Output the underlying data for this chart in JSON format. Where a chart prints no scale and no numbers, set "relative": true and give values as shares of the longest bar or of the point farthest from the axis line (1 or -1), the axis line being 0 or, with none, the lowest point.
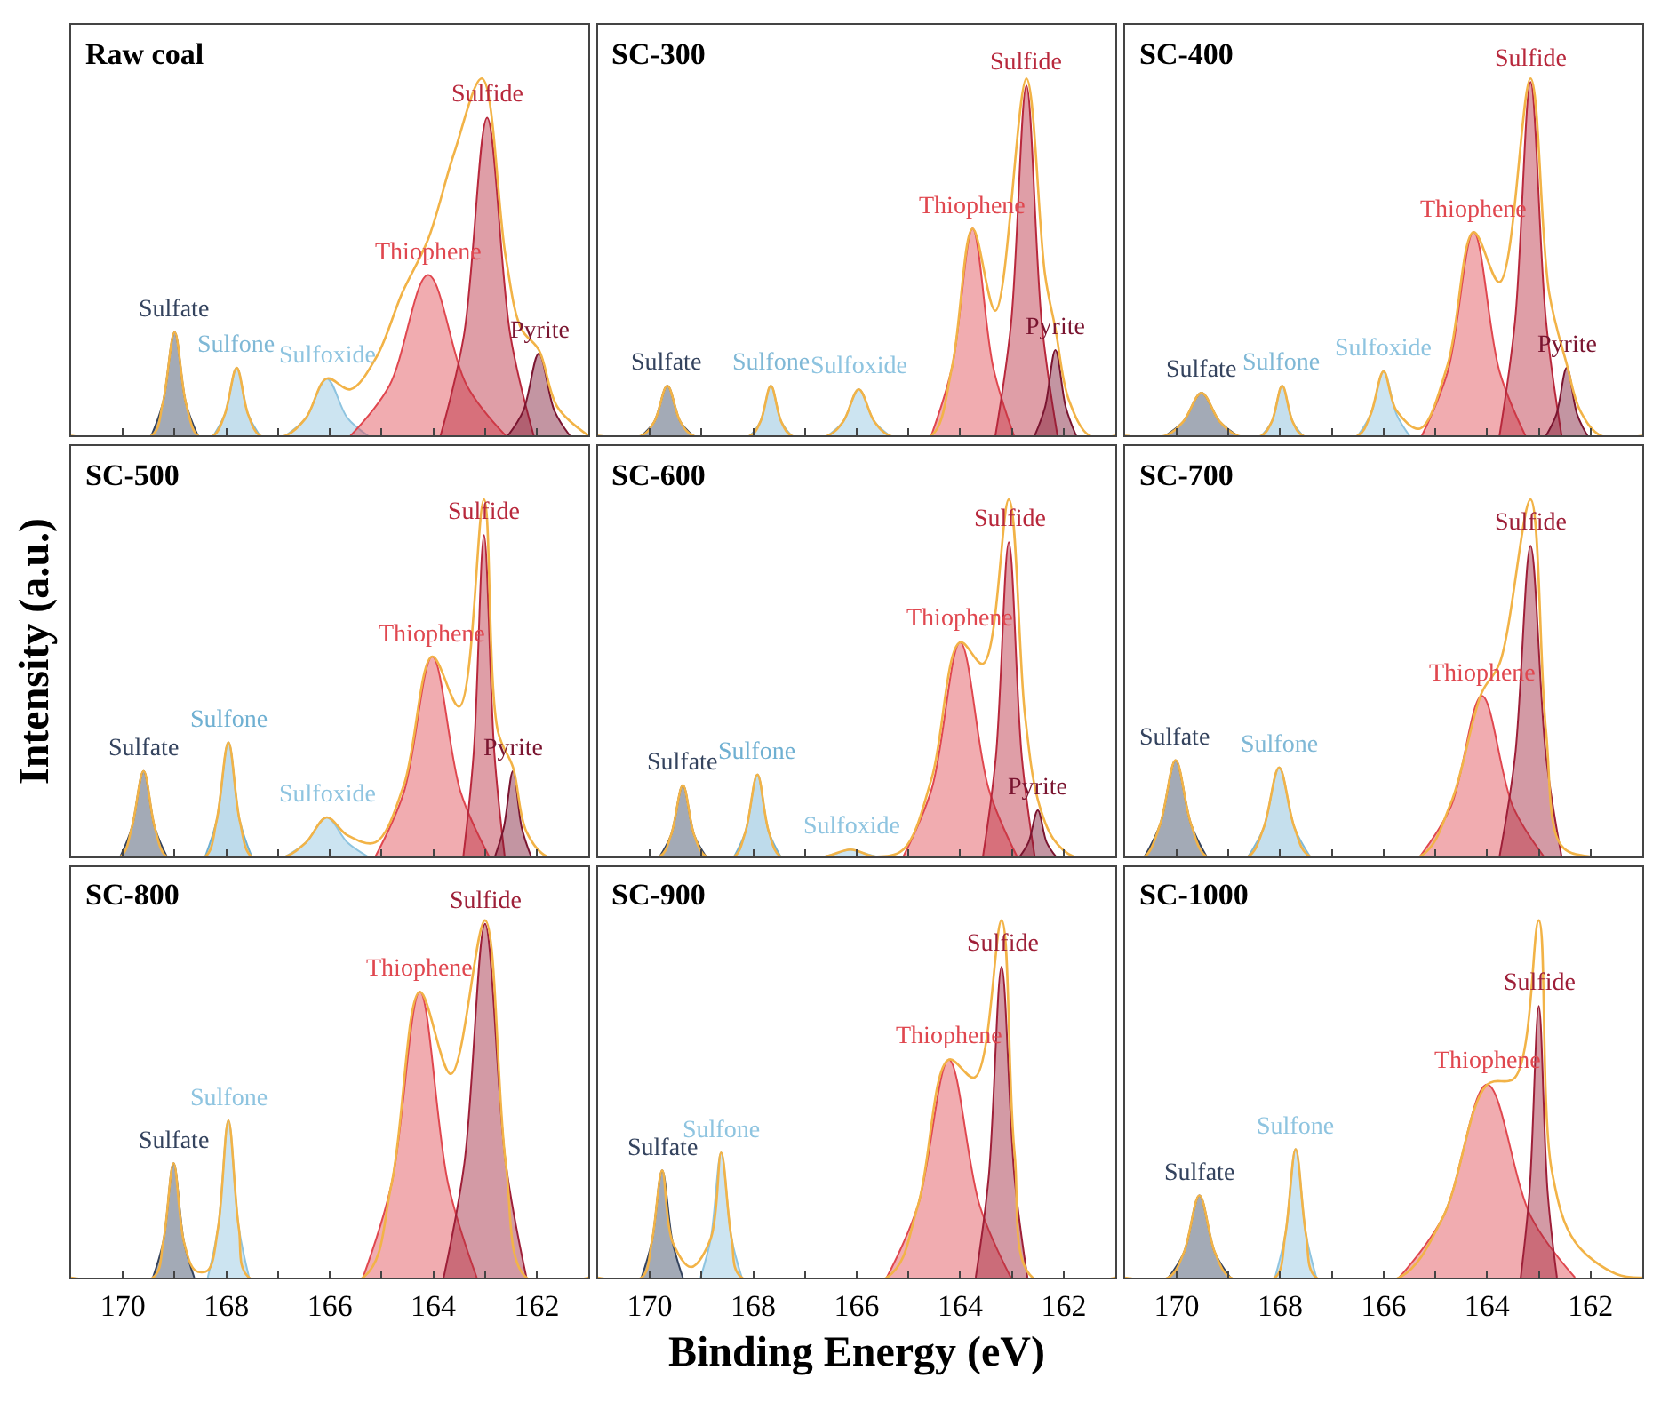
{
  "chart_data": [
    {
      "type": "area",
      "relative": true,
      "title": "Raw coal",
      "xlim": [
        171,
        161
      ],
      "xticks": [
        170,
        {
          "value": 169,
          "label": null
        },
        168,
        {
          "value": 167,
          "label": null
        },
        166,
        {
          "value": 165,
          "label": null
        },
        164,
        {
          "value": 163,
          "label": null
        },
        162
      ],
      "tick_labels": false,
      "series": [
        {
          "name": "Sulfate",
          "color": "#34435e",
          "x": [
            169.45,
            169.23,
            169.0,
            168.78,
            168.55
          ],
          "values": [
            0,
            0.09,
            0.29,
            0.09,
            0
          ]
        },
        {
          "name": "Sulfone",
          "color": "#7fb8d6",
          "x": [
            168.25,
            168.03,
            167.8,
            167.58,
            167.35
          ],
          "values": [
            0,
            0.06,
            0.19,
            0.06,
            0
          ]
        },
        {
          "name": "Sulfoxide",
          "color": "#8ec4e0",
          "x": [
            166.86,
            166.46,
            166.06,
            165.66,
            165.26
          ],
          "values": [
            0,
            0.05,
            0.16,
            0.05,
            0
          ]
        },
        {
          "name": "Thiophene",
          "color": "#e0474f",
          "x": [
            165.6,
            164.85,
            164.1,
            163.35,
            162.6
          ],
          "values": [
            0,
            0.14,
            0.45,
            0.14,
            0
          ]
        },
        {
          "name": "Sulfide",
          "color": "#b8283c",
          "x": [
            163.86,
            163.41,
            162.96,
            162.51,
            162.06
          ],
          "values": [
            0,
            0.28,
            0.89,
            0.28,
            0
          ]
        },
        {
          "name": "Pyrite",
          "color": "#7a1530",
          "x": [
            162.56,
            162.26,
            161.96,
            161.66,
            161.36
          ],
          "values": [
            0,
            0.07,
            0.23,
            0.07,
            0
          ]
        },
        {
          "type": "line",
          "color": "#f2b347",
          "x": [
            171,
            169.45,
            169.23,
            169.0,
            168.78,
            168.55,
            168.25,
            168.03,
            167.8,
            167.58,
            167.35,
            166.86,
            166.46,
            166.06,
            165.6,
            165.1,
            164.6,
            164.1,
            163.6,
            163.06,
            162.6,
            162.3,
            161.96,
            161.6,
            161.0
          ],
          "values": [
            0,
            0,
            0.09,
            0.29,
            0.09,
            0,
            0,
            0.06,
            0.19,
            0.06,
            0,
            0,
            0.05,
            0.16,
            0.13,
            0.22,
            0.4,
            0.55,
            0.79,
            1.0,
            0.5,
            0.3,
            0.24,
            0.08,
            0
          ]
        }
      ]
    },
    {
      "type": "area",
      "relative": true,
      "title": "SC-300",
      "xlim": [
        171,
        161
      ],
      "xticks": [
        170,
        {
          "value": 169,
          "label": null
        },
        168,
        {
          "value": 167,
          "label": null
        },
        166,
        {
          "value": 165,
          "label": null
        },
        164,
        {
          "value": 163,
          "label": null
        },
        162
      ],
      "tick_labels": false,
      "series": [
        {
          "name": "Sulfate",
          "color": "#34435e",
          "x": [
            170.16,
            169.91,
            169.66,
            169.41,
            169.16
          ],
          "values": [
            0,
            0.04,
            0.14,
            0.04,
            0
          ]
        },
        {
          "name": "Sulfone",
          "color": "#7fb8d6",
          "x": [
            168.06,
            167.86,
            167.66,
            167.46,
            167.26
          ],
          "values": [
            0,
            0.04,
            0.14,
            0.04,
            0
          ]
        },
        {
          "name": "Sulfoxide",
          "color": "#8ec4e0",
          "x": [
            166.56,
            166.26,
            165.96,
            165.66,
            165.36
          ],
          "values": [
            0,
            0.04,
            0.13,
            0.04,
            0
          ]
        },
        {
          "name": "Thiophene",
          "color": "#e0474f",
          "x": [
            164.56,
            164.16,
            163.76,
            163.36,
            162.96
          ],
          "values": [
            0,
            0.19,
            0.58,
            0.19,
            0
          ]
        },
        {
          "name": "Sulfide",
          "color": "#b8283c",
          "x": [
            163.32,
            163.02,
            162.72,
            162.42,
            162.12
          ],
          "values": [
            0,
            0.31,
            0.98,
            0.31,
            0
          ]
        },
        {
          "name": "Pyrite",
          "color": "#7a1530",
          "x": [
            162.56,
            162.36,
            162.16,
            161.96,
            161.76
          ],
          "values": [
            0,
            0.08,
            0.24,
            0.08,
            0
          ]
        },
        {
          "type": "line",
          "color": "#f2b347",
          "x": [
            171,
            170.16,
            169.91,
            169.66,
            169.41,
            169.16,
            168.06,
            167.86,
            167.66,
            167.46,
            167.26,
            166.56,
            166.26,
            165.96,
            165.66,
            165.36,
            164.56,
            164.16,
            163.76,
            163.32,
            162.72,
            162.36,
            162.16,
            161.9,
            161.5,
            161.0
          ],
          "values": [
            0,
            0,
            0.04,
            0.14,
            0.04,
            0,
            0,
            0.04,
            0.14,
            0.04,
            0,
            0,
            0.04,
            0.13,
            0.04,
            0,
            0,
            0.19,
            0.58,
            0.35,
            1.0,
            0.45,
            0.3,
            0.1,
            0,
            0
          ]
        }
      ]
    },
    {
      "type": "area",
      "relative": true,
      "title": "SC-400",
      "xlim": [
        171,
        161
      ],
      "xticks": [
        170,
        {
          "value": 169,
          "label": null
        },
        168,
        {
          "value": 167,
          "label": null
        },
        166,
        {
          "value": 165,
          "label": null
        },
        164,
        {
          "value": 163,
          "label": null
        },
        162
      ],
      "tick_labels": false,
      "series": [
        {
          "name": "Sulfate",
          "color": "#34435e",
          "x": [
            170.22,
            169.87,
            169.52,
            169.17,
            168.82
          ],
          "values": [
            0,
            0.04,
            0.12,
            0.04,
            0
          ]
        },
        {
          "name": "Sulfone",
          "color": "#7fb8d6",
          "x": [
            168.36,
            168.16,
            167.96,
            167.76,
            167.56
          ],
          "values": [
            0,
            0.04,
            0.14,
            0.04,
            0
          ]
        },
        {
          "name": "Sulfoxide",
          "color": "#8ec4e0",
          "x": [
            166.5,
            166.25,
            166.0,
            165.75,
            165.5
          ],
          "values": [
            0,
            0.06,
            0.18,
            0.06,
            0
          ]
        },
        {
          "name": "Thiophene",
          "color": "#e0474f",
          "x": [
            165.26,
            164.76,
            164.26,
            163.76,
            163.26
          ],
          "values": [
            0,
            0.18,
            0.57,
            0.18,
            0
          ]
        },
        {
          "name": "Sulfide",
          "color": "#b8283c",
          "x": [
            163.76,
            163.46,
            163.16,
            162.86,
            162.56
          ],
          "values": [
            0,
            0.32,
            0.99,
            0.32,
            0
          ]
        },
        {
          "name": "Pyrite",
          "color": "#7a1530",
          "x": [
            162.86,
            162.66,
            162.46,
            162.26,
            162.06
          ],
          "values": [
            0,
            0.06,
            0.19,
            0.06,
            0
          ]
        },
        {
          "type": "line",
          "color": "#f2b347",
          "x": [
            171,
            170.22,
            169.87,
            169.52,
            169.17,
            168.82,
            168.36,
            168.16,
            167.96,
            167.76,
            167.56,
            166.5,
            166.25,
            166.0,
            165.75,
            165.3,
            164.76,
            164.26,
            163.76,
            163.16,
            162.8,
            162.46,
            162.2,
            161.8,
            161.0
          ],
          "values": [
            0,
            0,
            0.04,
            0.12,
            0.04,
            0,
            0,
            0.04,
            0.14,
            0.04,
            0,
            0,
            0.06,
            0.18,
            0.07,
            0.02,
            0.2,
            0.57,
            0.43,
            1.0,
            0.4,
            0.2,
            0.07,
            0,
            0
          ]
        }
      ]
    },
    {
      "type": "area",
      "relative": true,
      "title": "SC-500",
      "ylabel": "Intensity (a.u.)",
      "xlim": [
        171,
        161
      ],
      "xticks": [
        170,
        {
          "value": 169,
          "label": null
        },
        168,
        {
          "value": 167,
          "label": null
        },
        166,
        {
          "value": 165,
          "label": null
        },
        164,
        {
          "value": 163,
          "label": null
        },
        162
      ],
      "tick_labels": false,
      "series": [
        {
          "name": "Sulfate",
          "color": "#34435e",
          "x": [
            170.05,
            169.83,
            169.6,
            169.38,
            169.15
          ],
          "values": [
            0,
            0.08,
            0.24,
            0.08,
            0
          ]
        },
        {
          "name": "Sulfone",
          "color": "#6fb0d2",
          "x": [
            168.41,
            168.19,
            167.96,
            167.74,
            167.51
          ],
          "values": [
            0,
            0.1,
            0.32,
            0.1,
            0
          ]
        },
        {
          "name": "Sulfoxide",
          "color": "#8ec4e0",
          "x": [
            166.86,
            166.46,
            166.06,
            165.66,
            165.26
          ],
          "values": [
            0,
            0.04,
            0.11,
            0.04,
            0
          ]
        },
        {
          "name": "Thiophene",
          "color": "#e0474f",
          "x": [
            165.12,
            164.57,
            164.02,
            163.47,
            162.92
          ],
          "values": [
            0,
            0.18,
            0.56,
            0.18,
            0
          ]
        },
        {
          "name": "Sulfide",
          "color": "#b8283c",
          "x": [
            163.42,
            163.22,
            163.02,
            162.82,
            162.62
          ],
          "values": [
            0,
            0.29,
            0.9,
            0.29,
            0
          ]
        },
        {
          "name": "Pyrite",
          "color": "#7a1530",
          "x": [
            162.81,
            162.64,
            162.46,
            162.29,
            162.11
          ],
          "values": [
            0,
            0.08,
            0.24,
            0.08,
            0
          ]
        },
        {
          "type": "line",
          "color": "#f2b347",
          "x": [
            171,
            170.05,
            169.83,
            169.6,
            169.38,
            169.15,
            168.41,
            168.19,
            167.96,
            167.74,
            167.51,
            166.86,
            166.46,
            166.06,
            165.66,
            165.12,
            164.57,
            164.02,
            163.5,
            163.02,
            162.75,
            162.46,
            162.2,
            161.8,
            161.0
          ],
          "values": [
            0,
            0,
            0.08,
            0.24,
            0.08,
            0,
            0,
            0.1,
            0.32,
            0.1,
            0,
            0,
            0.04,
            0.11,
            0.06,
            0.04,
            0.2,
            0.56,
            0.42,
            1.0,
            0.35,
            0.25,
            0.07,
            0,
            0
          ]
        }
      ]
    },
    {
      "type": "area",
      "relative": true,
      "title": "SC-600",
      "xlim": [
        171,
        161
      ],
      "xticks": [
        170,
        {
          "value": 169,
          "label": null
        },
        168,
        {
          "value": 167,
          "label": null
        },
        166,
        {
          "value": 165,
          "label": null
        },
        164,
        {
          "value": 163,
          "label": null
        },
        162
      ],
      "tick_labels": false,
      "series": [
        {
          "name": "Sulfate",
          "color": "#34435e",
          "x": [
            169.81,
            169.59,
            169.36,
            169.14,
            168.91
          ],
          "values": [
            0,
            0.06,
            0.2,
            0.06,
            0
          ]
        },
        {
          "name": "Sulfone",
          "color": "#6fb0d2",
          "x": [
            168.37,
            168.15,
            167.92,
            167.7,
            167.47
          ],
          "values": [
            0,
            0.07,
            0.23,
            0.07,
            0
          ]
        },
        {
          "name": "Sulfoxide",
          "color": "#8ec4e0",
          "x": [
            166.62,
            166.37,
            166.12,
            165.87,
            165.62
          ],
          "values": [
            0,
            0.01,
            0.02,
            0.01,
            0
          ]
        },
        {
          "name": "Thiophene",
          "color": "#e0474f",
          "x": [
            165.1,
            164.55,
            164.0,
            163.45,
            162.9
          ],
          "values": [
            0,
            0.19,
            0.6,
            0.19,
            0
          ]
        },
        {
          "name": "Sulfide",
          "color": "#b8283c",
          "x": [
            163.56,
            163.31,
            163.06,
            162.81,
            162.56
          ],
          "values": [
            0,
            0.28,
            0.88,
            0.28,
            0
          ]
        },
        {
          "name": "Pyrite",
          "color": "#7a1530",
          "x": [
            162.85,
            162.68,
            162.5,
            162.33,
            162.15
          ],
          "values": [
            0,
            0.04,
            0.13,
            0.04,
            0
          ]
        },
        {
          "type": "line",
          "color": "#f2b347",
          "x": [
            171,
            169.81,
            169.59,
            169.36,
            169.14,
            168.91,
            168.37,
            168.15,
            167.92,
            167.7,
            167.47,
            166.62,
            166.12,
            165.62,
            165.1,
            164.55,
            164.0,
            163.56,
            163.06,
            162.75,
            162.5,
            162.2,
            161.8,
            161.0
          ],
          "values": [
            0,
            0,
            0.06,
            0.2,
            0.06,
            0,
            0,
            0.07,
            0.23,
            0.07,
            0,
            0,
            0.02,
            0,
            0.02,
            0.22,
            0.6,
            0.54,
            1.0,
            0.4,
            0.16,
            0.05,
            0,
            0
          ]
        }
      ]
    },
    {
      "type": "area",
      "relative": true,
      "title": "SC-700",
      "xlim": [
        171,
        161
      ],
      "xticks": [
        170,
        {
          "value": 169,
          "label": null
        },
        168,
        {
          "value": 167,
          "label": null
        },
        166,
        {
          "value": 165,
          "label": null
        },
        164,
        {
          "value": 163,
          "label": null
        },
        162
      ],
      "tick_labels": false,
      "series": [
        {
          "name": "Sulfate",
          "color": "#34435e",
          "x": [
            170.62,
            170.32,
            170.02,
            169.72,
            169.42
          ],
          "values": [
            0,
            0.09,
            0.27,
            0.09,
            0
          ]
        },
        {
          "name": "Sulfone",
          "color": "#7fb8d6",
          "x": [
            168.62,
            168.32,
            168.02,
            167.72,
            167.42
          ],
          "values": [
            0,
            0.08,
            0.25,
            0.08,
            0
          ]
        },
        {
          "name": "Thiophene",
          "color": "#e0474f",
          "x": [
            165.3,
            164.7,
            164.1,
            163.5,
            162.9
          ],
          "values": [
            0,
            0.14,
            0.45,
            0.14,
            0
          ]
        },
        {
          "name": "Sulfide",
          "color": "#9e1f38",
          "x": [
            163.76,
            163.46,
            163.16,
            162.86,
            162.56
          ],
          "values": [
            0,
            0.28,
            0.87,
            0.28,
            0
          ]
        },
        {
          "type": "line",
          "color": "#f2b347",
          "x": [
            171,
            170.62,
            170.32,
            170.02,
            169.72,
            169.42,
            168.62,
            168.32,
            168.02,
            167.72,
            167.42,
            165.3,
            164.7,
            164.1,
            163.76,
            163.16,
            162.86,
            162.56,
            162.0,
            161.0
          ],
          "values": [
            0,
            0,
            0.09,
            0.27,
            0.09,
            0,
            0,
            0.08,
            0.25,
            0.08,
            0,
            0,
            0.15,
            0.46,
            0.54,
            1.0,
            0.35,
            0.03,
            0,
            0
          ]
        }
      ]
    },
    {
      "type": "area",
      "relative": true,
      "title": "SC-800",
      "xlim": [
        171,
        161
      ],
      "xticks": [
        170,
        {
          "value": 169,
          "label": null
        },
        168,
        {
          "value": 167,
          "label": null
        },
        166,
        {
          "value": 165,
          "label": null
        },
        164,
        {
          "value": 163,
          "label": null
        },
        162
      ],
      "tick_labels": "x",
      "series": [
        {
          "name": "Sulfate",
          "color": "#34435e",
          "x": [
            169.42,
            169.22,
            169.02,
            168.82,
            168.62
          ],
          "values": [
            0,
            0.1,
            0.32,
            0.1,
            0
          ]
        },
        {
          "name": "Sulfone",
          "color": "#8ec4e0",
          "x": [
            168.36,
            168.16,
            167.96,
            167.76,
            167.56
          ],
          "values": [
            0,
            0.14,
            0.44,
            0.14,
            0
          ]
        },
        {
          "name": "Thiophene",
          "color": "#e0474f",
          "x": [
            165.36,
            164.81,
            164.26,
            163.71,
            163.16
          ],
          "values": [
            0,
            0.26,
            0.8,
            0.26,
            0
          ]
        },
        {
          "name": "Sulfide",
          "color": "#9e1f38",
          "x": [
            163.8,
            163.4,
            163.0,
            162.6,
            162.2
          ],
          "values": [
            0,
            0.32,
            0.99,
            0.32,
            0
          ]
        },
        {
          "type": "line",
          "color": "#f2b347",
          "x": [
            171,
            169.42,
            169.22,
            169.02,
            168.82,
            168.6,
            168.36,
            168.16,
            167.96,
            167.76,
            167.56,
            165.36,
            164.81,
            164.26,
            163.66,
            163.0,
            162.6,
            162.2,
            161.0
          ],
          "values": [
            0,
            0,
            0.1,
            0.32,
            0.1,
            0.02,
            0.02,
            0.14,
            0.44,
            0.14,
            0,
            0,
            0.26,
            0.8,
            0.57,
            1.0,
            0.32,
            0,
            0
          ]
        }
      ]
    },
    {
      "type": "area",
      "relative": true,
      "title": "SC-900",
      "xlabel": "Binding Energy (eV)",
      "xlim": [
        171,
        161
      ],
      "xticks": [
        170,
        {
          "value": 169,
          "label": null
        },
        168,
        {
          "value": 167,
          "label": null
        },
        166,
        {
          "value": 165,
          "label": null
        },
        164,
        {
          "value": 163,
          "label": null
        },
        162
      ],
      "tick_labels": "x",
      "series": [
        {
          "name": "Sulfate",
          "color": "#34435e",
          "x": [
            170.16,
            169.96,
            169.76,
            169.56,
            169.36
          ],
          "values": [
            0,
            0.1,
            0.3,
            0.1,
            0
          ]
        },
        {
          "name": "Sulfone",
          "color": "#8ec4e0",
          "x": [
            169.02,
            168.82,
            168.62,
            168.42,
            168.22
          ],
          "values": [
            0,
            0.11,
            0.35,
            0.11,
            0
          ]
        },
        {
          "name": "Thiophene",
          "color": "#e0474f",
          "x": [
            165.42,
            164.82,
            164.22,
            163.62,
            163.02
          ],
          "values": [
            0,
            0.2,
            0.61,
            0.2,
            0
          ]
        },
        {
          "name": "Sulfide",
          "color": "#9e1f38",
          "x": [
            163.7,
            163.45,
            163.2,
            162.95,
            162.7
          ],
          "values": [
            0,
            0.28,
            0.87,
            0.28,
            0
          ]
        },
        {
          "type": "line",
          "color": "#f2b347",
          "x": [
            171,
            170.16,
            169.96,
            169.76,
            169.56,
            169.2,
            168.82,
            168.62,
            168.42,
            168.22,
            165.42,
            164.82,
            164.22,
            163.72,
            163.2,
            162.95,
            162.6,
            161.0
          ],
          "values": [
            0,
            0,
            0.1,
            0.3,
            0.1,
            0.03,
            0.11,
            0.35,
            0.11,
            0,
            0,
            0.2,
            0.61,
            0.56,
            1.0,
            0.35,
            0,
            0
          ]
        }
      ]
    },
    {
      "type": "area",
      "relative": true,
      "title": "SC-1000",
      "xlim": [
        171,
        161
      ],
      "xticks": [
        170,
        {
          "value": 169,
          "label": null
        },
        168,
        {
          "value": 167,
          "label": null
        },
        166,
        {
          "value": 165,
          "label": null
        },
        164,
        {
          "value": 163,
          "label": null
        },
        162
      ],
      "tick_labels": "x",
      "series": [
        {
          "name": "Sulfate",
          "color": "#34435e",
          "x": [
            170.16,
            169.86,
            169.56,
            169.26,
            168.96
          ],
          "values": [
            0,
            0.07,
            0.23,
            0.07,
            0
          ]
        },
        {
          "name": "Sulfone",
          "color": "#8ec4e0",
          "x": [
            168.1,
            167.9,
            167.7,
            167.5,
            167.3
          ],
          "values": [
            0,
            0.12,
            0.36,
            0.12,
            0
          ]
        },
        {
          "name": "Thiophene",
          "color": "#e0474f",
          "x": [
            165.7,
            164.85,
            164.0,
            163.15,
            162.3
          ],
          "values": [
            0,
            0.17,
            0.54,
            0.17,
            0
          ]
        },
        {
          "name": "Sulfide",
          "color": "#9e1f38",
          "x": [
            163.35,
            163.18,
            163.0,
            162.83,
            162.65
          ],
          "values": [
            0,
            0.24,
            0.76,
            0.24,
            0
          ]
        },
        {
          "type": "line",
          "color": "#f2b347",
          "x": [
            171,
            170.16,
            169.86,
            169.56,
            169.26,
            168.96,
            168.1,
            167.9,
            167.7,
            167.5,
            167.3,
            165.7,
            164.85,
            164.0,
            163.46,
            163.0,
            162.75,
            162.3,
            161.5,
            161.0
          ],
          "values": [
            0,
            0,
            0.07,
            0.23,
            0.07,
            0,
            0,
            0.12,
            0.36,
            0.12,
            0,
            0,
            0.17,
            0.54,
            0.56,
            1.0,
            0.3,
            0.1,
            0.01,
            0
          ]
        }
      ]
    }
  ]
}
